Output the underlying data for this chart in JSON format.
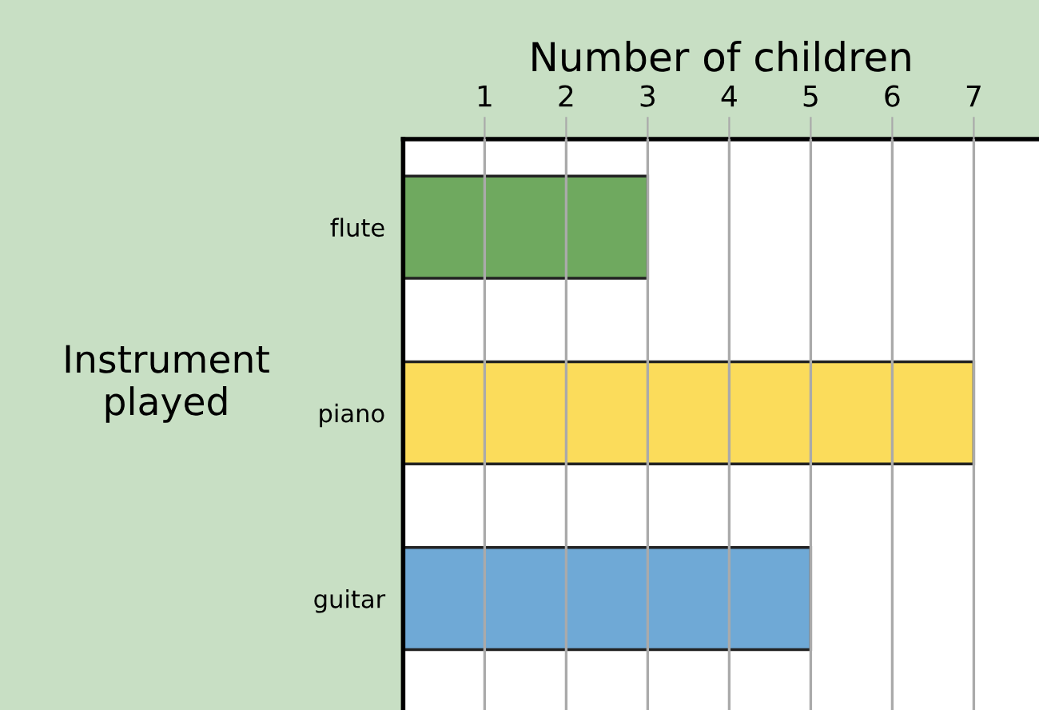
{
  "chart_data": {
    "type": "bar",
    "orientation": "horizontal",
    "xlabel": "Number of children",
    "ylabel": "Instrument played",
    "categories": [
      "flute",
      "piano",
      "guitar"
    ],
    "values": [
      3,
      7,
      5
    ],
    "colors": [
      "#6fa95f",
      "#fbdc5b",
      "#6fa9d6"
    ],
    "xlim": [
      0,
      7.8
    ],
    "xticks": [
      1,
      2,
      3,
      4,
      5,
      6,
      7
    ],
    "grid": "x",
    "legend": false
  }
}
